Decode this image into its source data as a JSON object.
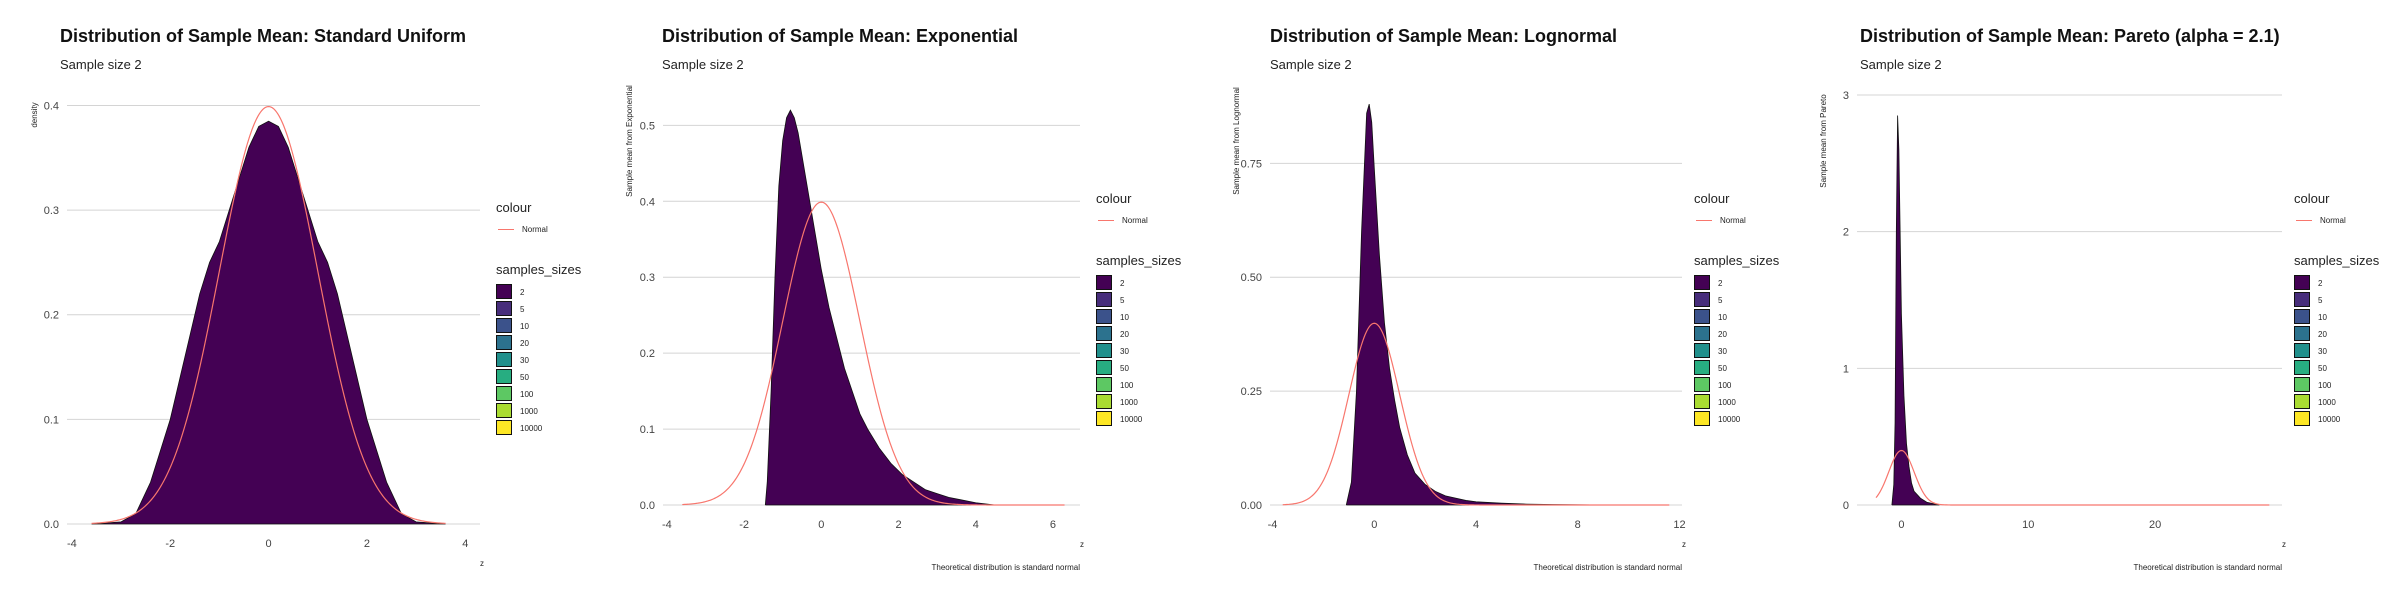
{
  "legend": {
    "colour_title": "colour",
    "colour_label": "Normal",
    "normal_color": "#F8766D",
    "fill_title": "samples_sizes",
    "sizes": [
      "2",
      "5",
      "10",
      "20",
      "30",
      "50",
      "100",
      "1000",
      "10000"
    ],
    "colors": [
      "#440154",
      "#472D7B",
      "#3B528B",
      "#2C728E",
      "#21908C",
      "#27AD81",
      "#5DC863",
      "#AADC32",
      "#FDE725"
    ]
  },
  "chart_data": [
    {
      "type": "area",
      "title": "Distribution of Sample Mean: Standard Uniform",
      "subtitle": "Sample size 2",
      "ylabel": "density",
      "xlabel_corner": "z",
      "xlabel_bottom": "",
      "xlim": [
        -4.1,
        4.3
      ],
      "ylim": [
        0,
        0.41
      ],
      "xticks": [
        -4,
        -2,
        0,
        2,
        4
      ],
      "yticks": [
        0,
        0.1,
        0.2,
        0.3,
        0.4
      ],
      "ytick_labels": [
        "0.0",
        "0.1",
        "0.2",
        "0.3",
        "0.4"
      ],
      "grid": "horizontal",
      "series": [
        {
          "fill": "#440154",
          "x": [
            -3.6,
            -3.0,
            -2.7,
            -2.4,
            -2.2,
            -2.0,
            -1.8,
            -1.6,
            -1.4,
            -1.2,
            -1.0,
            -0.8,
            -0.6,
            -0.4,
            -0.2,
            0,
            0.2,
            0.4,
            0.6,
            0.8,
            1.0,
            1.2,
            1.4,
            1.6,
            1.8,
            2.0,
            2.2,
            2.4,
            2.7,
            3.0,
            3.6
          ],
          "y": [
            0,
            0.002,
            0.01,
            0.04,
            0.07,
            0.1,
            0.14,
            0.18,
            0.22,
            0.25,
            0.27,
            0.3,
            0.33,
            0.36,
            0.38,
            0.385,
            0.38,
            0.36,
            0.33,
            0.3,
            0.27,
            0.25,
            0.22,
            0.18,
            0.14,
            0.1,
            0.07,
            0.04,
            0.01,
            0.002,
            0
          ]
        }
      ],
      "normal_curve": {
        "mean": 0,
        "sd": 1,
        "x_range": [
          -3.6,
          3.6
        ]
      }
    },
    {
      "type": "area",
      "title": "Distribution of Sample Mean: Exponential",
      "subtitle": "Sample size 2",
      "ylabel": "Sample mean from Exponential",
      "xlabel_corner": "z",
      "xlabel_bottom": "Theoretical distribution is standard normal",
      "xlim": [
        -4.1,
        6.7
      ],
      "ylim": [
        0,
        0.54
      ],
      "xticks": [
        -4,
        -2,
        0,
        2,
        4,
        6
      ],
      "yticks": [
        0,
        0.1,
        0.2,
        0.3,
        0.4,
        0.5
      ],
      "ytick_labels": [
        "0.0",
        "0.1",
        "0.2",
        "0.3",
        "0.4",
        "0.5"
      ],
      "grid": "horizontal",
      "series": [
        {
          "fill": "#440154",
          "x": [
            -1.45,
            -1.4,
            -1.3,
            -1.2,
            -1.1,
            -1.0,
            -0.9,
            -0.8,
            -0.7,
            -0.6,
            -0.5,
            -0.4,
            -0.3,
            -0.2,
            0,
            0.2,
            0.4,
            0.6,
            0.8,
            1.0,
            1.2,
            1.5,
            1.8,
            2.1,
            2.4,
            2.7,
            3.0,
            3.3,
            3.6,
            4.0,
            4.5
          ],
          "y": [
            0,
            0.03,
            0.15,
            0.3,
            0.42,
            0.48,
            0.51,
            0.52,
            0.51,
            0.49,
            0.46,
            0.43,
            0.4,
            0.37,
            0.31,
            0.26,
            0.22,
            0.18,
            0.15,
            0.12,
            0.1,
            0.075,
            0.055,
            0.04,
            0.03,
            0.02,
            0.015,
            0.01,
            0.007,
            0.003,
            0
          ]
        }
      ],
      "normal_curve": {
        "mean": 0,
        "sd": 1,
        "x_range": [
          -3.6,
          6.3
        ]
      }
    },
    {
      "type": "area",
      "title": "Distribution of Sample Mean: Lognormal",
      "subtitle": "Sample size 2",
      "ylabel": "Sample mean from Lognormal",
      "xlabel_corner": "z",
      "xlabel_bottom": "Theoretical distribution is standard normal",
      "xlim": [
        -4.1,
        12.1
      ],
      "ylim": [
        0,
        0.9
      ],
      "xticks": [
        -4,
        0,
        4,
        8,
        12
      ],
      "yticks": [
        0,
        0.25,
        0.5,
        0.75
      ],
      "ytick_labels": [
        "0.00",
        "0.25",
        "0.50",
        "0.75"
      ],
      "grid": "horizontal",
      "series": [
        {
          "fill": "#440154",
          "x": [
            -1.1,
            -0.9,
            -0.7,
            -0.5,
            -0.3,
            -0.2,
            -0.1,
            0,
            0.2,
            0.4,
            0.6,
            0.8,
            1.0,
            1.3,
            1.6,
            2.0,
            2.4,
            2.8,
            3.2,
            3.6,
            4.0,
            5.0,
            6.0,
            7.0,
            8.0,
            9.0
          ],
          "y": [
            0,
            0.05,
            0.25,
            0.6,
            0.86,
            0.88,
            0.84,
            0.74,
            0.55,
            0.4,
            0.3,
            0.23,
            0.17,
            0.11,
            0.07,
            0.045,
            0.03,
            0.02,
            0.015,
            0.01,
            0.007,
            0.004,
            0.002,
            0.001,
            0.0005,
            0
          ]
        }
      ],
      "normal_curve": {
        "mean": 0,
        "sd": 1,
        "x_range": [
          -3.6,
          11.6
        ]
      }
    },
    {
      "type": "area",
      "title": "Distribution of Sample Mean: Pareto (alpha = 2.1)",
      "subtitle": "Sample size 2",
      "ylabel": "Sample mean from Pareto",
      "xlabel_corner": "z",
      "xlabel_bottom": "Theoretical distribution is standard normal",
      "xlim": [
        -3.5,
        30
      ],
      "ylim": [
        0,
        3.0
      ],
      "xticks": [
        0,
        10,
        20
      ],
      "yticks": [
        0,
        1,
        2,
        3
      ],
      "ytick_labels": [
        "0",
        "1",
        "2",
        "3"
      ],
      "grid": "horizontal",
      "series": [
        {
          "fill": "#440154",
          "x": [
            -0.75,
            -0.6,
            -0.5,
            -0.4,
            -0.3,
            -0.2,
            -0.1,
            0,
            0.2,
            0.4,
            0.6,
            0.8,
            1.0,
            1.5,
            2.0,
            3.0
          ],
          "y": [
            0,
            0.15,
            0.6,
            2.0,
            2.85,
            2.6,
            2.0,
            1.4,
            0.8,
            0.45,
            0.28,
            0.16,
            0.1,
            0.05,
            0.02,
            0
          ]
        }
      ],
      "normal_curve": {
        "mean": 0,
        "sd": 1,
        "x_range": [
          -2.0,
          29.0
        ]
      }
    }
  ]
}
